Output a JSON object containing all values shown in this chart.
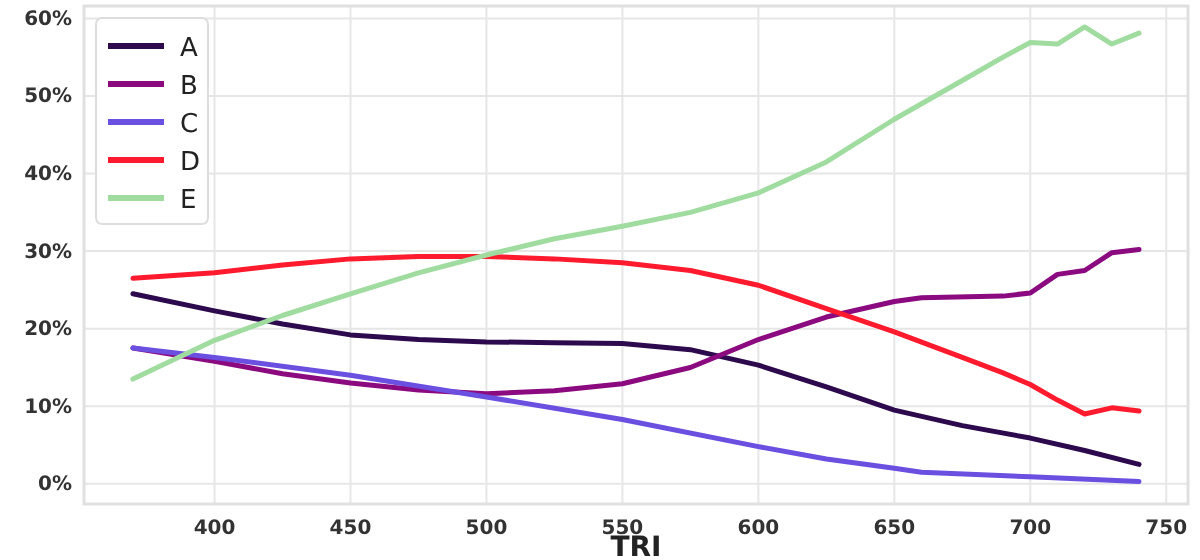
{
  "chart_data": {
    "type": "line",
    "xlabel": "TRI",
    "xlim": [
      352,
      758
    ],
    "ylim": [
      -2.6,
      61.6
    ],
    "xticks": [
      400,
      450,
      500,
      550,
      600,
      650,
      700,
      750
    ],
    "yticks": [
      {
        "value": 0,
        "label": "0%"
      },
      {
        "value": 10,
        "label": "10%"
      },
      {
        "value": 20,
        "label": "20%"
      },
      {
        "value": 30,
        "label": "30%"
      },
      {
        "value": 40,
        "label": "40%"
      },
      {
        "value": 50,
        "label": "50%"
      },
      {
        "value": 60,
        "label": "60%"
      }
    ],
    "grid": true,
    "legend": "top left",
    "line_style": "solid",
    "series": [
      {
        "name": "A",
        "color": "#2d0a4e",
        "x": [
          370,
          400,
          425,
          450,
          475,
          500,
          525,
          550,
          575,
          600,
          625,
          650,
          675,
          700,
          720,
          740
        ],
        "values": [
          24.5,
          22.3,
          20.6,
          19.2,
          18.6,
          18.3,
          18.2,
          18.1,
          17.3,
          15.3,
          12.5,
          9.5,
          7.5,
          5.9,
          4.3,
          2.5
        ]
      },
      {
        "name": "B",
        "color": "#8b0a7f",
        "x": [
          370,
          400,
          425,
          450,
          475,
          500,
          525,
          550,
          575,
          600,
          625,
          650,
          660,
          690,
          700,
          710,
          720,
          730,
          740
        ],
        "values": [
          17.5,
          15.8,
          14.2,
          13.0,
          12.1,
          11.6,
          12.0,
          12.9,
          15.0,
          18.6,
          21.5,
          23.5,
          24.0,
          24.2,
          24.6,
          27.0,
          27.5,
          29.8,
          30.2
        ]
      },
      {
        "name": "C",
        "color": "#6a4fe0",
        "x": [
          370,
          400,
          450,
          500,
          550,
          600,
          625,
          650,
          660,
          700,
          740
        ],
        "values": [
          17.5,
          16.3,
          14.0,
          11.2,
          8.3,
          4.8,
          3.2,
          2.0,
          1.5,
          0.9,
          0.3
        ]
      },
      {
        "name": "D",
        "color": "#ff1a2e",
        "x": [
          370,
          400,
          425,
          450,
          475,
          500,
          525,
          550,
          575,
          600,
          625,
          650,
          675,
          690,
          700,
          710,
          720,
          730,
          740
        ],
        "values": [
          26.5,
          27.2,
          28.2,
          29.0,
          29.3,
          29.3,
          29.0,
          28.5,
          27.5,
          25.6,
          22.6,
          19.6,
          16.3,
          14.3,
          12.8,
          10.8,
          9.0,
          9.8,
          9.4
        ]
      },
      {
        "name": "E",
        "color": "#a0dca0",
        "x": [
          370,
          400,
          425,
          450,
          475,
          500,
          525,
          550,
          575,
          600,
          625,
          650,
          675,
          690,
          700,
          710,
          720,
          730,
          740
        ],
        "values": [
          13.5,
          18.5,
          21.7,
          24.5,
          27.2,
          29.5,
          31.6,
          33.2,
          35.0,
          37.5,
          41.5,
          47.0,
          52.0,
          55.0,
          56.9,
          56.7,
          58.9,
          56.7,
          58.1
        ]
      }
    ]
  }
}
